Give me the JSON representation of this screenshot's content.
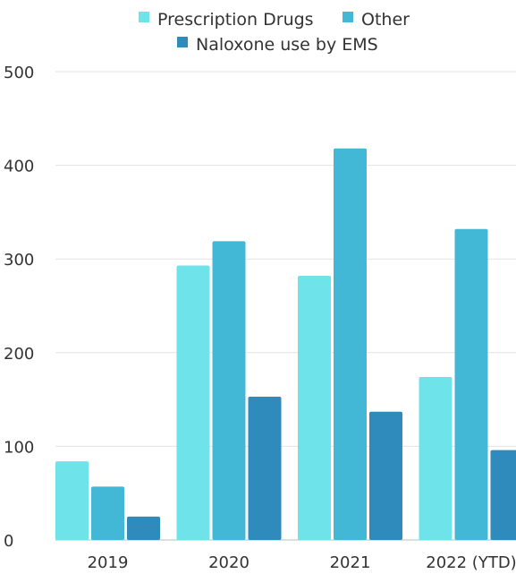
{
  "chart_data": {
    "type": "bar",
    "title": "",
    "xlabel": "",
    "ylabel": "",
    "categories": [
      "2019",
      "2020",
      "2021",
      "2022 (YTD)"
    ],
    "series": [
      {
        "name": "Prescription Drugs",
        "color": "#6fe3ea",
        "values": [
          84,
          293,
          282,
          174
        ]
      },
      {
        "name": "Other",
        "color": "#43b8d6",
        "values": [
          57,
          319,
          418,
          332
        ]
      },
      {
        "name": "Naloxone use by EMS",
        "color": "#2f8bbb",
        "values": [
          25,
          153,
          137,
          96
        ]
      }
    ],
    "ylim": [
      0,
      500
    ],
    "yticks": [
      0,
      100,
      200,
      300,
      400,
      500
    ],
    "grid": true,
    "legend_position": "top"
  }
}
